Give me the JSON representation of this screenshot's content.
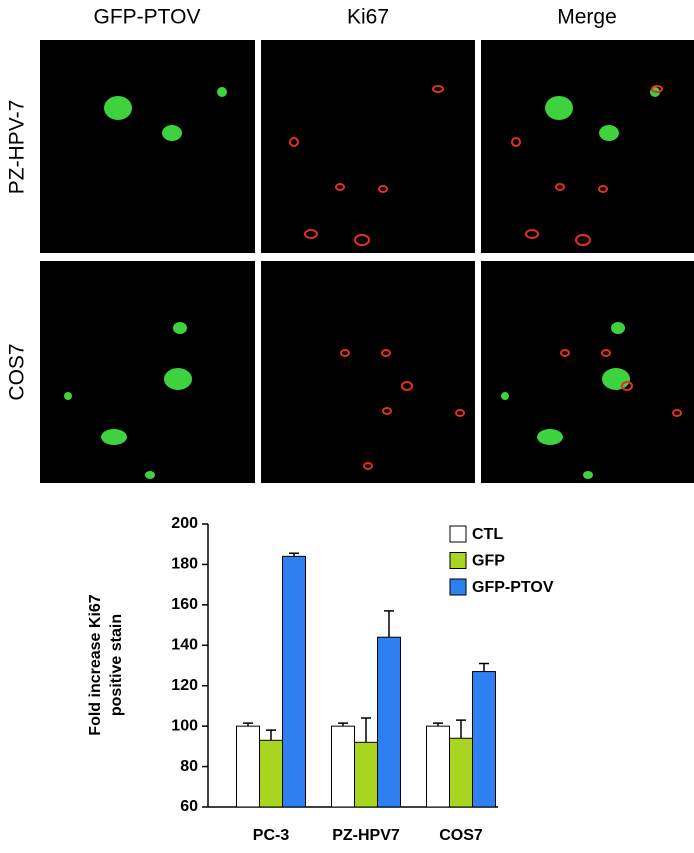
{
  "figure": {
    "columns": [
      "GFP-PTOV",
      "Ki67",
      "Merge"
    ],
    "rows": [
      "PZ-HPV-7",
      "COS7"
    ]
  },
  "chart_data": {
    "type": "bar",
    "ylabel": [
      "Fold increase Ki67",
      "positive stain"
    ],
    "categories": [
      "PC-3",
      "PZ-HPV7",
      "COS7"
    ],
    "series": [
      {
        "name": "CTL",
        "color": "#ffffff",
        "values": [
          100,
          100,
          100
        ],
        "errors": [
          1.5,
          1.5,
          1.5
        ]
      },
      {
        "name": "GFP",
        "color": "#a8d620",
        "values": [
          93,
          92,
          94
        ],
        "errors": [
          5,
          12,
          9
        ]
      },
      {
        "name": "GFP-PTOV",
        "color": "#2e7ff0",
        "values": [
          184,
          144,
          127
        ],
        "errors": [
          1.5,
          13,
          4
        ]
      }
    ],
    "ylim": [
      60,
      200
    ],
    "yticks": [
      60,
      80,
      100,
      120,
      140,
      160,
      180,
      200
    ]
  }
}
